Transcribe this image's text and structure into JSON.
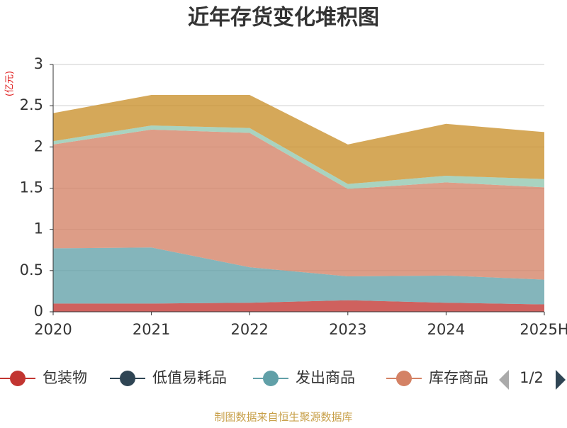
{
  "chart_data": {
    "type": "area",
    "stacked": true,
    "title": "近年存货变化堆积图",
    "y_label": "(亿元)",
    "source": "制图数据来自恒生聚源数据库",
    "legend_page": "1/2",
    "categories": [
      "2020",
      "2021",
      "2022",
      "2023",
      "2024",
      "2025H"
    ],
    "ylim": [
      0,
      3
    ],
    "yticks": [
      0,
      0.5,
      1,
      1.5,
      2,
      2.5,
      3
    ],
    "grid": true,
    "series": [
      {
        "name": "包装物",
        "color": "#c23531",
        "values": [
          0.1,
          0.1,
          0.11,
          0.14,
          0.11,
          0.09
        ]
      },
      {
        "name": "低值易耗品",
        "color": "#2f4554",
        "values": [
          0,
          0,
          0,
          0,
          0,
          0
        ]
      },
      {
        "name": "发出商品",
        "color": "#61a0a8",
        "values": [
          0.67,
          0.68,
          0.43,
          0.29,
          0.33,
          0.3
        ]
      },
      {
        "name": "库存商品",
        "color": "#d48265",
        "values": [
          1.26,
          1.43,
          1.63,
          1.06,
          1.13,
          1.12
        ]
      },
      {
        "color": "#91c7ae",
        "values": [
          0.04,
          0.05,
          0.06,
          0.06,
          0.08,
          0.1
        ]
      },
      {
        "color": "#c98f2a",
        "values": [
          0.34,
          0.37,
          0.4,
          0.48,
          0.63,
          0.57
        ]
      }
    ]
  }
}
